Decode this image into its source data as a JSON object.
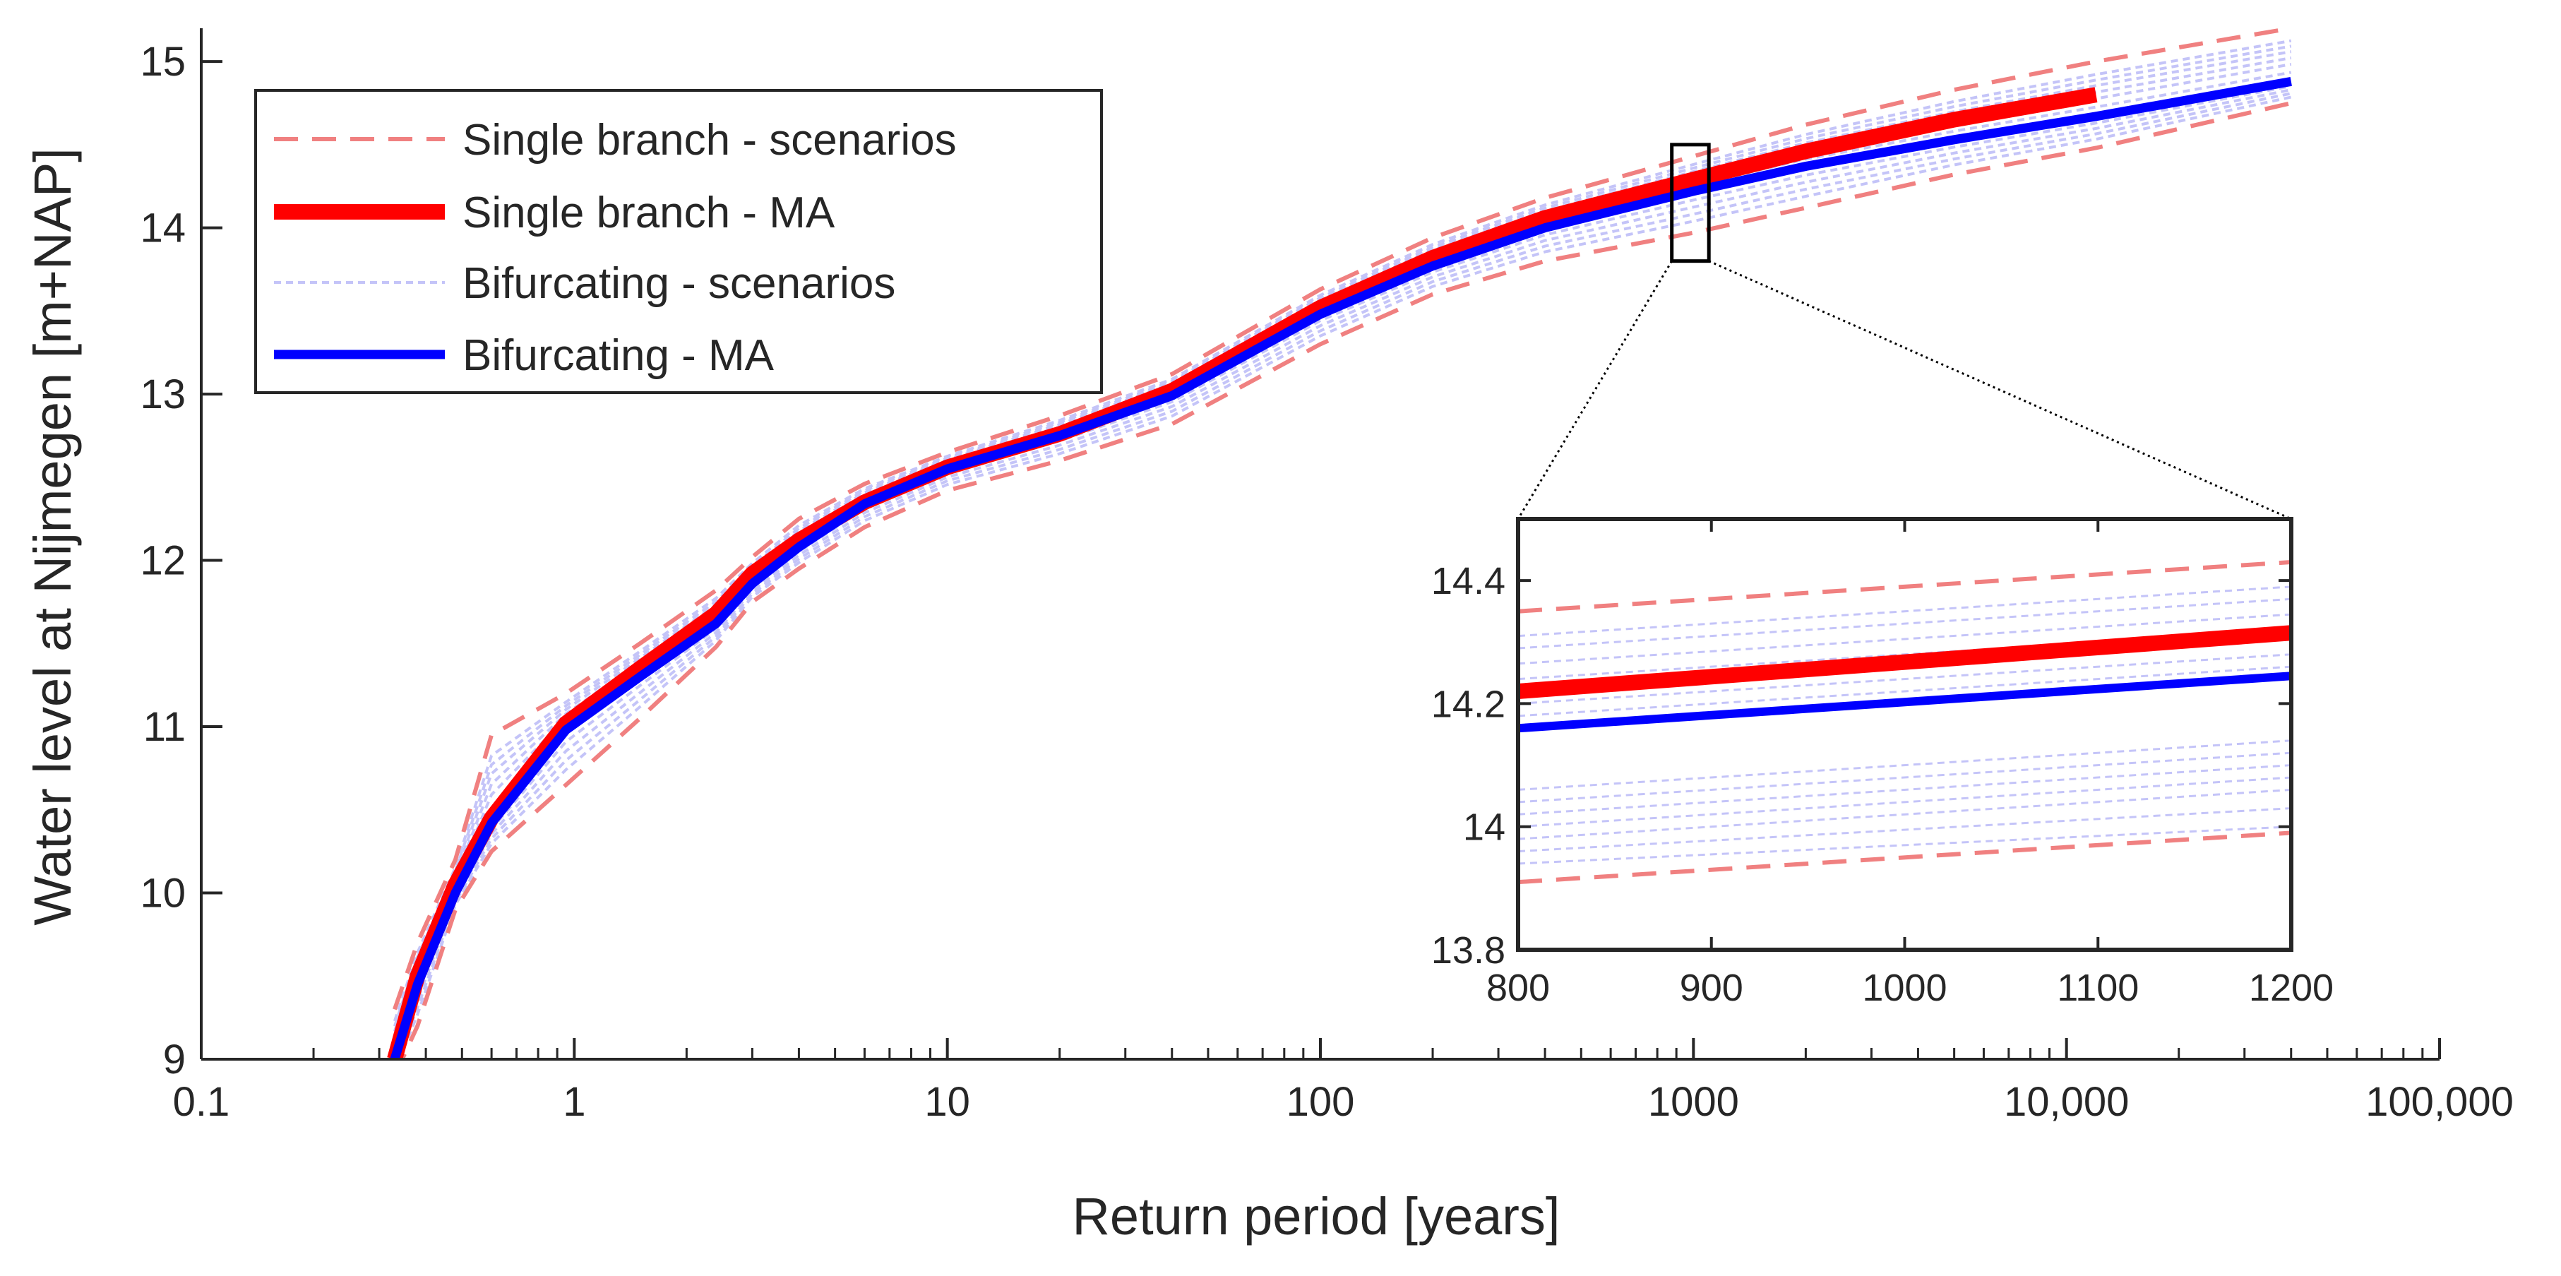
{
  "chart_data": {
    "type": "line",
    "xscale": "log",
    "xlabel": "Return period [years]",
    "ylabel": "Water level at Nijmegen [m+NAP]",
    "xlim": [
      0.1,
      100000
    ],
    "ylim": [
      9,
      15.2
    ],
    "xticks": [
      0.1,
      1,
      10,
      100,
      1000,
      10000,
      100000
    ],
    "xtick_labels": [
      "0.1",
      "1",
      "10",
      "100",
      "1000",
      "10,000",
      "100,000"
    ],
    "yticks": [
      9,
      10,
      11,
      12,
      13,
      14,
      15
    ],
    "ytick_labels": [
      "9",
      "10",
      "11",
      "12",
      "13",
      "14",
      "15"
    ],
    "grid": false,
    "legend_position": "top-left",
    "legend": [
      {
        "label": "Single branch - scenarios",
        "color": "#f08080",
        "style": "dashed"
      },
      {
        "label": "Single branch - MA",
        "color": "#ff0000",
        "style": "solid-thick"
      },
      {
        "label": "Bifurcating - scenarios",
        "color": "#c4c4f8",
        "style": "dotted"
      },
      {
        "label": "Bifurcating - MA",
        "color": "#0000ff",
        "style": "solid-thick"
      }
    ],
    "colors": {
      "single_scenarios": "#f08080",
      "single_ma": "#ff0000",
      "bif_scenarios": "#c4c4f8",
      "bif_ma": "#0000ff",
      "axis": "#262626"
    },
    "x": [
      0.33,
      0.38,
      0.48,
      0.6,
      0.95,
      1.5,
      2.4,
      3.0,
      4.0,
      6.0,
      10,
      20,
      40,
      100,
      200,
      400,
      1000,
      2000,
      5000,
      12000,
      40000
    ],
    "series": [
      {
        "name": "Single branch - MA",
        "values": [
          9.0,
          9.5,
          10.05,
          10.45,
          11.02,
          11.35,
          11.68,
          11.92,
          12.12,
          12.35,
          12.56,
          12.76,
          13.02,
          13.52,
          13.82,
          14.06,
          14.29,
          14.46,
          14.65,
          14.8,
          null
        ]
      },
      {
        "name": "Bifurcating - MA",
        "values": [
          9.0,
          9.45,
          10.0,
          10.42,
          10.98,
          11.3,
          11.62,
          11.86,
          12.08,
          12.34,
          12.55,
          12.75,
          12.99,
          13.48,
          13.77,
          14.0,
          14.22,
          14.37,
          14.53,
          14.67,
          14.88
        ]
      },
      {
        "name": "Single branch - scenarios (upper)",
        "values": [
          9.3,
          9.7,
          10.2,
          10.95,
          11.2,
          11.5,
          11.82,
          12.02,
          12.25,
          12.46,
          12.65,
          12.87,
          13.12,
          13.63,
          13.94,
          14.18,
          14.43,
          14.62,
          14.83,
          15.0,
          15.2
        ]
      },
      {
        "name": "Single branch - scenarios (lower)",
        "values": [
          8.9,
          9.2,
          9.9,
          10.25,
          10.65,
          11.05,
          11.48,
          11.75,
          11.95,
          12.2,
          12.42,
          12.6,
          12.82,
          13.3,
          13.6,
          13.8,
          13.97,
          14.12,
          14.32,
          14.48,
          14.75
        ]
      }
    ],
    "inset": {
      "xlim": [
        800,
        1200
      ],
      "ylim": [
        13.8,
        14.5
      ],
      "xticks": [
        800,
        900,
        1000,
        1100,
        1200
      ],
      "xtick_labels": [
        "800",
        "900",
        "1000",
        "1100",
        "1200"
      ],
      "yticks": [
        13.8,
        14,
        14.2,
        14.4
      ],
      "ytick_labels": [
        "13.8",
        "14",
        "14.2",
        "14.4"
      ],
      "x": [
        800,
        1200
      ],
      "single_ma": [
        14.22,
        14.315
      ],
      "bif_ma": [
        14.16,
        14.245
      ],
      "single_scenarios": [
        [
          14.35,
          14.43
        ],
        [
          13.91,
          13.99
        ]
      ],
      "bif_scenarios": [
        [
          14.31,
          14.39
        ],
        [
          14.29,
          14.37
        ],
        [
          14.265,
          14.345
        ],
        [
          14.24,
          14.32
        ],
        [
          14.2,
          14.28
        ],
        [
          14.18,
          14.26
        ],
        [
          14.06,
          14.14
        ],
        [
          14.04,
          14.12
        ],
        [
          14.02,
          14.1
        ],
        [
          14.0,
          14.08
        ],
        [
          13.98,
          14.06
        ],
        [
          13.96,
          14.03
        ],
        [
          13.94,
          14.0
        ]
      ],
      "highlight_box": {
        "x": [
          875,
          1100
        ],
        "y": [
          13.8,
          14.5
        ]
      }
    }
  }
}
